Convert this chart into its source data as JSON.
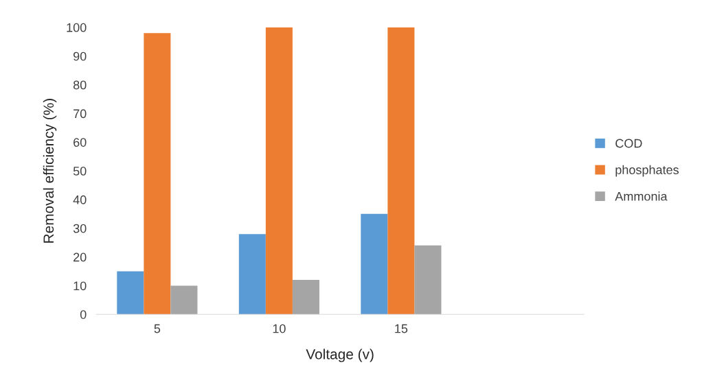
{
  "chart_data": {
    "type": "bar",
    "xlabel": "Voltage (v)",
    "ylabel": "Removal efficiency (%)",
    "categories": [
      "5",
      "10",
      "15",
      null
    ],
    "series": [
      {
        "name": "COD",
        "color": "#5b9bd5",
        "values": [
          15,
          28,
          35,
          null
        ]
      },
      {
        "name": "phosphates",
        "color": "#ed7d31",
        "values": [
          98,
          100,
          100,
          null
        ]
      },
      {
        "name": "Ammonia",
        "color": "#a5a5a5",
        "values": [
          10,
          12,
          24,
          null
        ]
      }
    ],
    "ylim": [
      0,
      100
    ],
    "yticks": [
      0,
      10,
      20,
      30,
      40,
      50,
      60,
      70,
      80,
      90,
      100
    ],
    "grid": false,
    "legend": "right"
  }
}
